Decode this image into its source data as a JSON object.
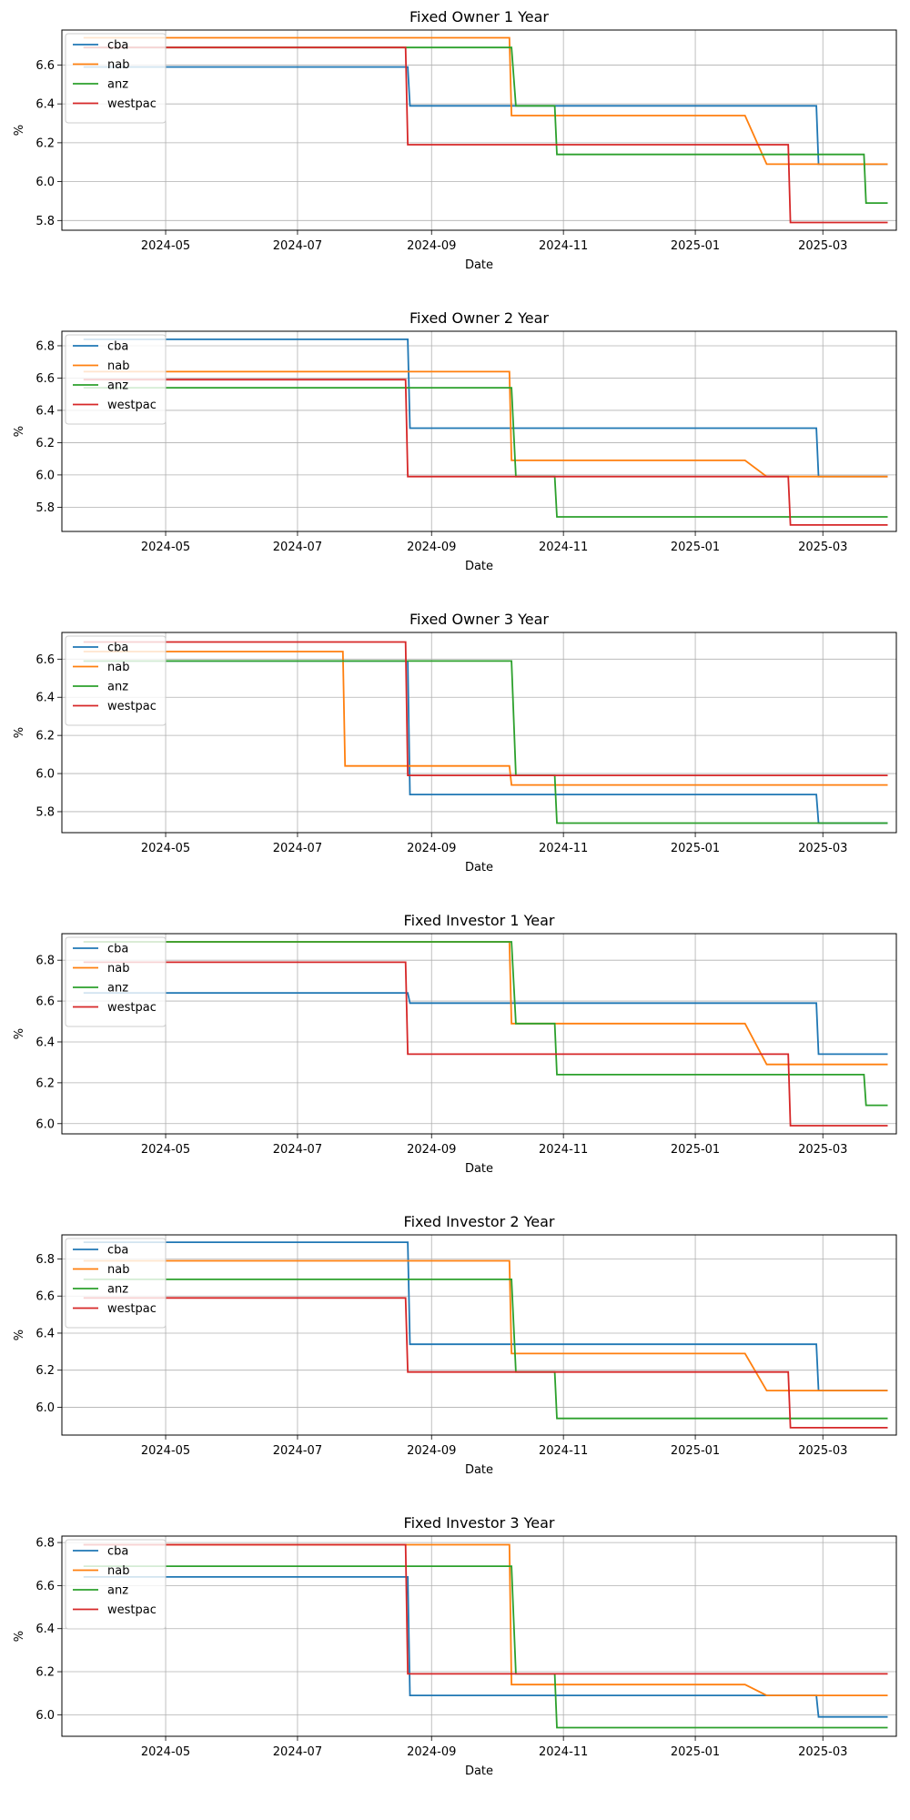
{
  "colors": {
    "cba": "#1f77b4",
    "nab": "#ff7f0e",
    "anz": "#2ca02c",
    "westpac": "#d62728"
  },
  "chart_data": [
    {
      "type": "line",
      "title": "Fixed Owner 1 Year",
      "xlabel": "Date",
      "ylabel": "%",
      "xlim": [
        "2024-03-14",
        "2025-04-04"
      ],
      "ylim": [
        5.75,
        6.78
      ],
      "xticks": [
        "2024-05",
        "2024-07",
        "2024-09",
        "2024-11",
        "2025-01",
        "2025-03"
      ],
      "yticks": [
        "5.8",
        "6.0",
        "6.2",
        "6.4",
        "6.6"
      ],
      "grid": true,
      "legend": "upper left",
      "series": [
        {
          "name": "cba",
          "x": [
            "2024-03-24",
            "2024-08-21",
            "2024-08-22",
            "2025-02-26",
            "2025-02-27",
            "2025-03-31"
          ],
          "y": [
            6.59,
            6.59,
            6.39,
            6.39,
            6.09,
            6.09
          ]
        },
        {
          "name": "nab",
          "x": [
            "2024-03-24",
            "2024-10-07",
            "2024-10-08",
            "2025-01-24",
            "2025-02-03",
            "2025-03-31"
          ],
          "y": [
            6.74,
            6.74,
            6.34,
            6.34,
            6.09,
            6.09
          ]
        },
        {
          "name": "anz",
          "x": [
            "2024-03-24",
            "2024-10-08",
            "2024-10-10",
            "2024-10-28",
            "2024-10-29",
            "2025-03-20",
            "2025-03-21",
            "2025-03-31"
          ],
          "y": [
            6.69,
            6.69,
            6.39,
            6.39,
            6.14,
            6.14,
            5.89,
            5.89
          ]
        },
        {
          "name": "westpac",
          "x": [
            "2024-03-24",
            "2024-08-20",
            "2024-08-21",
            "2025-02-13",
            "2025-02-14",
            "2025-03-31"
          ],
          "y": [
            6.69,
            6.69,
            6.19,
            6.19,
            5.79,
            5.79
          ]
        }
      ]
    },
    {
      "type": "line",
      "title": "Fixed Owner 2 Year",
      "xlabel": "Date",
      "ylabel": "%",
      "xlim": [
        "2024-03-14",
        "2025-04-04"
      ],
      "ylim": [
        5.65,
        6.89
      ],
      "xticks": [
        "2024-05",
        "2024-07",
        "2024-09",
        "2024-11",
        "2025-01",
        "2025-03"
      ],
      "yticks": [
        "5.8",
        "6.0",
        "6.2",
        "6.4",
        "6.6",
        "6.8"
      ],
      "grid": true,
      "legend": "upper left",
      "series": [
        {
          "name": "cba",
          "x": [
            "2024-03-24",
            "2024-08-21",
            "2024-08-22",
            "2025-02-26",
            "2025-02-27",
            "2025-03-31"
          ],
          "y": [
            6.84,
            6.84,
            6.29,
            6.29,
            5.99,
            5.99
          ]
        },
        {
          "name": "nab",
          "x": [
            "2024-03-24",
            "2024-10-07",
            "2024-10-08",
            "2025-01-24",
            "2025-02-03",
            "2025-03-31"
          ],
          "y": [
            6.64,
            6.64,
            6.09,
            6.09,
            5.99,
            5.99
          ]
        },
        {
          "name": "anz",
          "x": [
            "2024-03-24",
            "2024-10-08",
            "2024-10-10",
            "2024-10-28",
            "2024-10-29",
            "2025-03-31"
          ],
          "y": [
            6.54,
            6.54,
            5.99,
            5.99,
            5.74,
            5.74
          ]
        },
        {
          "name": "westpac",
          "x": [
            "2024-03-24",
            "2024-08-20",
            "2024-08-21",
            "2025-02-13",
            "2025-02-14",
            "2025-03-31"
          ],
          "y": [
            6.59,
            6.59,
            5.99,
            5.99,
            5.69,
            5.69
          ]
        }
      ]
    },
    {
      "type": "line",
      "title": "Fixed Owner 3 Year",
      "xlabel": "Date",
      "ylabel": "%",
      "xlim": [
        "2024-03-14",
        "2025-04-04"
      ],
      "ylim": [
        5.69,
        6.74
      ],
      "xticks": [
        "2024-05",
        "2024-07",
        "2024-09",
        "2024-11",
        "2025-01",
        "2025-03"
      ],
      "yticks": [
        "5.8",
        "6.0",
        "6.2",
        "6.4",
        "6.6"
      ],
      "grid": true,
      "legend": "upper left",
      "series": [
        {
          "name": "cba",
          "x": [
            "2024-03-24",
            "2024-08-21",
            "2024-08-22",
            "2025-02-26",
            "2025-02-27",
            "2025-03-31"
          ],
          "y": [
            6.59,
            6.59,
            5.89,
            5.89,
            5.74,
            5.74
          ]
        },
        {
          "name": "nab",
          "x": [
            "2024-03-24",
            "2024-07-22",
            "2024-07-23",
            "2024-10-07",
            "2024-10-08",
            "2025-03-31"
          ],
          "y": [
            6.64,
            6.64,
            6.04,
            6.04,
            5.94,
            5.94
          ]
        },
        {
          "name": "anz",
          "x": [
            "2024-03-24",
            "2024-10-08",
            "2024-10-10",
            "2024-10-28",
            "2024-10-29",
            "2025-03-31"
          ],
          "y": [
            6.59,
            6.59,
            5.99,
            5.99,
            5.74,
            5.74
          ]
        },
        {
          "name": "westpac",
          "x": [
            "2024-03-24",
            "2024-08-20",
            "2024-08-21",
            "2025-03-31"
          ],
          "y": [
            6.69,
            6.69,
            5.99,
            5.99
          ]
        }
      ]
    },
    {
      "type": "line",
      "title": "Fixed Investor 1 Year",
      "xlabel": "Date",
      "ylabel": "%",
      "xlim": [
        "2024-03-14",
        "2025-04-04"
      ],
      "ylim": [
        5.95,
        6.93
      ],
      "xticks": [
        "2024-05",
        "2024-07",
        "2024-09",
        "2024-11",
        "2025-01",
        "2025-03"
      ],
      "yticks": [
        "6.0",
        "6.2",
        "6.4",
        "6.6",
        "6.8"
      ],
      "grid": true,
      "legend": "upper left",
      "series": [
        {
          "name": "cba",
          "x": [
            "2024-03-24",
            "2024-08-21",
            "2024-08-22",
            "2025-02-26",
            "2025-02-27",
            "2025-03-31"
          ],
          "y": [
            6.64,
            6.64,
            6.59,
            6.59,
            6.34,
            6.34
          ]
        },
        {
          "name": "nab",
          "x": [
            "2024-03-24",
            "2024-10-07",
            "2024-10-08",
            "2025-01-24",
            "2025-02-03",
            "2025-03-31"
          ],
          "y": [
            6.89,
            6.89,
            6.49,
            6.49,
            6.29,
            6.29
          ]
        },
        {
          "name": "anz",
          "x": [
            "2024-03-24",
            "2024-10-08",
            "2024-10-10",
            "2024-10-28",
            "2024-10-29",
            "2025-03-20",
            "2025-03-21",
            "2025-03-31"
          ],
          "y": [
            6.89,
            6.89,
            6.49,
            6.49,
            6.24,
            6.24,
            6.09,
            6.09
          ]
        },
        {
          "name": "westpac",
          "x": [
            "2024-03-24",
            "2024-08-20",
            "2024-08-21",
            "2025-02-13",
            "2025-02-14",
            "2025-03-31"
          ],
          "y": [
            6.79,
            6.79,
            6.34,
            6.34,
            5.99,
            5.99
          ]
        }
      ]
    },
    {
      "type": "line",
      "title": "Fixed Investor 2 Year",
      "xlabel": "Date",
      "ylabel": "%",
      "xlim": [
        "2024-03-14",
        "2025-04-04"
      ],
      "ylim": [
        5.85,
        6.93
      ],
      "xticks": [
        "2024-05",
        "2024-07",
        "2024-09",
        "2024-11",
        "2025-01",
        "2025-03"
      ],
      "yticks": [
        "6.0",
        "6.2",
        "6.4",
        "6.6",
        "6.8"
      ],
      "grid": true,
      "legend": "upper left",
      "series": [
        {
          "name": "cba",
          "x": [
            "2024-03-24",
            "2024-08-21",
            "2024-08-22",
            "2025-02-26",
            "2025-02-27",
            "2025-03-31"
          ],
          "y": [
            6.89,
            6.89,
            6.34,
            6.34,
            6.09,
            6.09
          ]
        },
        {
          "name": "nab",
          "x": [
            "2024-03-24",
            "2024-10-07",
            "2024-10-08",
            "2025-01-24",
            "2025-02-03",
            "2025-03-31"
          ],
          "y": [
            6.79,
            6.79,
            6.29,
            6.29,
            6.09,
            6.09
          ]
        },
        {
          "name": "anz",
          "x": [
            "2024-03-24",
            "2024-10-08",
            "2024-10-10",
            "2024-10-28",
            "2024-10-29",
            "2025-03-31"
          ],
          "y": [
            6.69,
            6.69,
            6.19,
            6.19,
            5.94,
            5.94
          ]
        },
        {
          "name": "westpac",
          "x": [
            "2024-03-24",
            "2024-08-20",
            "2024-08-21",
            "2025-02-13",
            "2025-02-14",
            "2025-03-31"
          ],
          "y": [
            6.59,
            6.59,
            6.19,
            6.19,
            5.89,
            5.89
          ]
        }
      ]
    },
    {
      "type": "line",
      "title": "Fixed Investor 3 Year",
      "xlabel": "Date",
      "ylabel": "%",
      "xlim": [
        "2024-03-14",
        "2025-04-04"
      ],
      "ylim": [
        5.9,
        6.83
      ],
      "xticks": [
        "2024-05",
        "2024-07",
        "2024-09",
        "2024-11",
        "2025-01",
        "2025-03"
      ],
      "yticks": [
        "6.0",
        "6.2",
        "6.4",
        "6.6",
        "6.8"
      ],
      "grid": true,
      "legend": "upper left",
      "series": [
        {
          "name": "cba",
          "x": [
            "2024-03-24",
            "2024-08-21",
            "2024-08-22",
            "2025-02-26",
            "2025-02-27",
            "2025-03-31"
          ],
          "y": [
            6.64,
            6.64,
            6.09,
            6.09,
            5.99,
            5.99
          ]
        },
        {
          "name": "nab",
          "x": [
            "2024-03-24",
            "2024-10-07",
            "2024-10-08",
            "2025-01-24",
            "2025-02-03",
            "2025-03-31"
          ],
          "y": [
            6.79,
            6.79,
            6.14,
            6.14,
            6.09,
            6.09
          ]
        },
        {
          "name": "anz",
          "x": [
            "2024-03-24",
            "2024-10-08",
            "2024-10-10",
            "2024-10-28",
            "2024-10-29",
            "2025-03-31"
          ],
          "y": [
            6.69,
            6.69,
            6.19,
            6.19,
            5.94,
            5.94
          ]
        },
        {
          "name": "westpac",
          "x": [
            "2024-03-24",
            "2024-08-20",
            "2024-08-21",
            "2025-03-31"
          ],
          "y": [
            6.79,
            6.79,
            6.19,
            6.19
          ]
        }
      ]
    }
  ]
}
